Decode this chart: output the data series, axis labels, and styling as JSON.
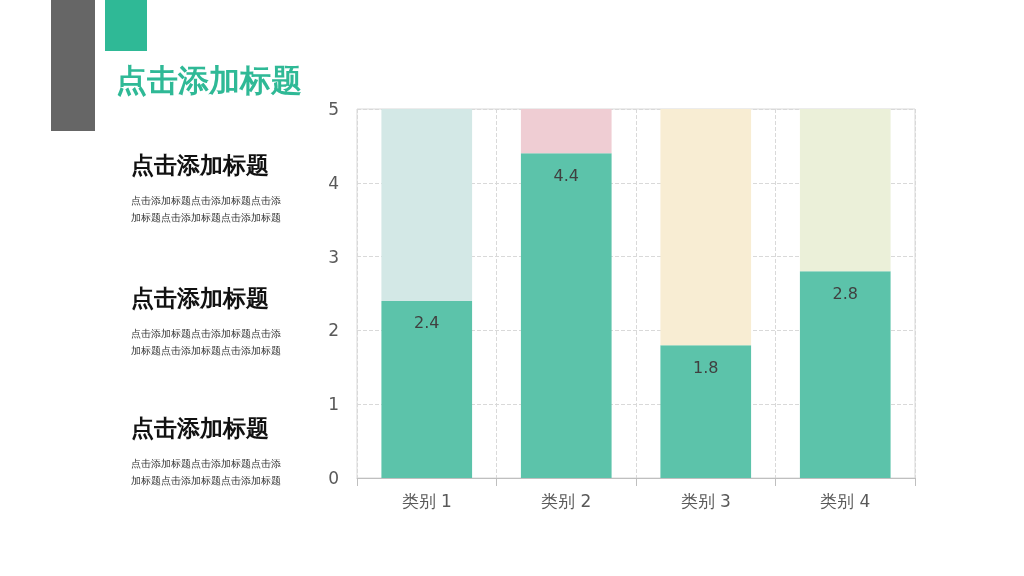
{
  "chart_data": {
    "type": "bar",
    "title": "点击添加标题",
    "categories": [
      "类别 1",
      "类别 2",
      "类别 3",
      "类别 4"
    ],
    "stacked": true,
    "series": [
      {
        "color": "#5cc3aa",
        "values": [
          2.4,
          4.4,
          1.8,
          2.8
        ],
        "value_labels": [
          "2.4",
          "4.4",
          "1.8",
          "2.8"
        ]
      },
      {
        "colors": [
          "#d3e8e6",
          "#efcdd3",
          "#f8edd3",
          "#ebf0d9"
        ],
        "values": [
          2.6,
          0.6,
          3.2,
          2.2
        ]
      }
    ],
    "ylim": [
      0,
      5
    ],
    "yticks": [
      0,
      1,
      2,
      3,
      4,
      5
    ],
    "grid": true,
    "annotations": [
      "点击添加标题",
      "点击添加标题点击添加标题点击添加标题点击添加标题点击添加标题",
      "点击添加标题",
      "点击添加标题点击添加标题点击添加标题点击添加标题点击添加标题",
      "点击添加标题",
      "点击添加标题点击添加标题点击添加标题点击添加标题点击添加标题"
    ]
  }
}
